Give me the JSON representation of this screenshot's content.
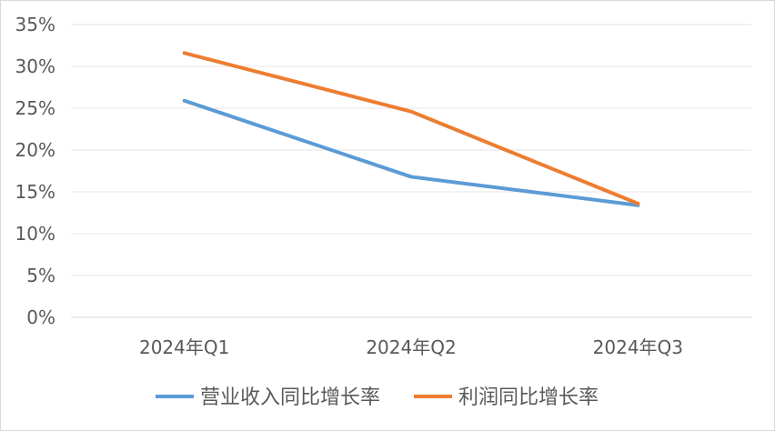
{
  "chart_data": {
    "type": "line",
    "categories": [
      "2024年Q1",
      "2024年Q2",
      "2024年Q3"
    ],
    "y_ticks": [
      "0%",
      "5%",
      "10%",
      "15%",
      "20%",
      "25%",
      "30%",
      "35%"
    ],
    "ylim": [
      0,
      35
    ],
    "y_unit": "%",
    "grid": true,
    "legend_position": "bottom",
    "series": [
      {
        "name": "营业收入同比增长率",
        "color": "#5b9bd5",
        "values": [
          25.9,
          16.8,
          13.4
        ]
      },
      {
        "name": "利润同比增长率",
        "color": "#ed7d31",
        "values": [
          31.6,
          24.6,
          13.6
        ]
      }
    ]
  }
}
